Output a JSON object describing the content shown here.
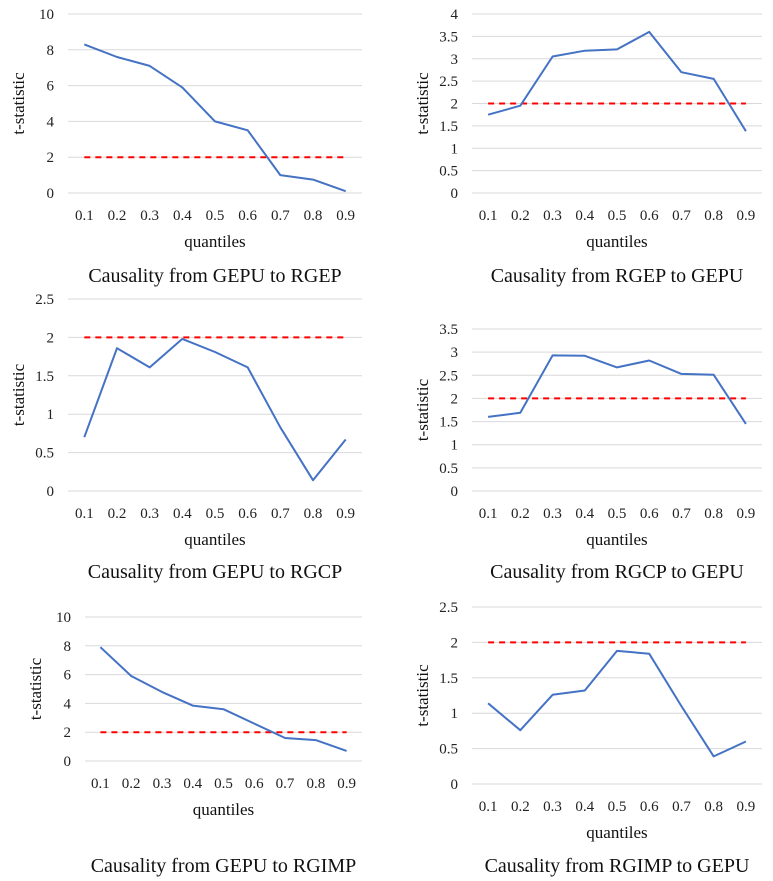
{
  "chart_data": [
    {
      "type": "line",
      "caption": "Causality from GEPU to RGEP",
      "xlabel": "quantiles",
      "ylabel": "t-statistic",
      "x": [
        "0.1",
        "0.2",
        "0.3",
        "0.4",
        "0.5",
        "0.6",
        "0.7",
        "0.8",
        "0.9"
      ],
      "y_ticks": [
        "0",
        "2",
        "4",
        "6",
        "8",
        "10"
      ],
      "ylim": [
        0,
        10
      ],
      "values": [
        8.3,
        7.6,
        7.1,
        5.9,
        4.0,
        3.5,
        1.0,
        0.75,
        0.1
      ],
      "threshold": 2,
      "grid": true,
      "colors": {
        "series": "#4472c4",
        "threshold": "#ff0000"
      }
    },
    {
      "type": "line",
      "caption": "Causality from RGEP to GEPU",
      "xlabel": "quantiles",
      "ylabel": "t-statistic",
      "x": [
        "0.1",
        "0.2",
        "0.3",
        "0.4",
        "0.5",
        "0.6",
        "0.7",
        "0.8",
        "0.9"
      ],
      "y_ticks": [
        "0",
        "0.5",
        "1",
        "1.5",
        "2",
        "2.5",
        "3",
        "3.5",
        "4"
      ],
      "ylim": [
        0,
        4
      ],
      "values": [
        1.75,
        1.95,
        3.05,
        3.18,
        3.21,
        3.6,
        2.7,
        2.55,
        1.38
      ],
      "threshold": 2,
      "grid": true,
      "colors": {
        "series": "#4472c4",
        "threshold": "#ff0000"
      }
    },
    {
      "type": "line",
      "caption": "Causality from GEPU to RGCP",
      "xlabel": "quantiles",
      "ylabel": "t-statistic",
      "x": [
        "0.1",
        "0.2",
        "0.3",
        "0.4",
        "0.5",
        "0.6",
        "0.7",
        "0.8",
        "0.9"
      ],
      "y_ticks": [
        "0",
        "0.5",
        "1",
        "1.5",
        "2",
        "2.5"
      ],
      "ylim": [
        0,
        2.5
      ],
      "values": [
        0.7,
        1.86,
        1.61,
        1.98,
        1.81,
        1.61,
        0.83,
        0.14,
        0.67
      ],
      "threshold": 2,
      "grid": true,
      "colors": {
        "series": "#4472c4",
        "threshold": "#ff0000"
      }
    },
    {
      "type": "line",
      "caption": "Causality from RGCP to GEPU",
      "xlabel": "quantiles",
      "ylabel": "t-statistic",
      "x": [
        "0.1",
        "0.2",
        "0.3",
        "0.4",
        "0.5",
        "0.6",
        "0.7",
        "0.8",
        "0.9"
      ],
      "y_ticks": [
        "0",
        "0.5",
        "1",
        "1.5",
        "2",
        "2.5",
        "3",
        "3.5"
      ],
      "ylim": [
        0,
        3.5
      ],
      "values": [
        1.6,
        1.69,
        2.93,
        2.92,
        2.67,
        2.82,
        2.53,
        2.51,
        1.45
      ],
      "threshold": 2,
      "grid": true,
      "colors": {
        "series": "#4472c4",
        "threshold": "#ff0000"
      }
    },
    {
      "type": "line",
      "caption": "Causality from GEPU to RGIMP",
      "xlabel": "quantiles",
      "ylabel": "t-statistic",
      "x": [
        "0.1",
        "0.2",
        "0.3",
        "0.4",
        "0.5",
        "0.6",
        "0.7",
        "0.8",
        "0.9"
      ],
      "y_ticks": [
        "0",
        "2",
        "4",
        "6",
        "8",
        "10"
      ],
      "ylim": [
        0,
        10
      ],
      "values": [
        7.9,
        5.9,
        4.8,
        3.85,
        3.6,
        2.6,
        1.6,
        1.45,
        0.7
      ],
      "threshold": 2,
      "grid": true,
      "colors": {
        "series": "#4472c4",
        "threshold": "#ff0000"
      }
    },
    {
      "type": "line",
      "caption": "Causality from RGIMP to GEPU",
      "xlabel": "quantiles",
      "ylabel": "t-statistic",
      "x": [
        "0.1",
        "0.2",
        "0.3",
        "0.4",
        "0.5",
        "0.6",
        "0.7",
        "0.8",
        "0.9"
      ],
      "y_ticks": [
        "0",
        "0.5",
        "1",
        "1.5",
        "2",
        "2.5"
      ],
      "ylim": [
        0,
        2.5
      ],
      "values": [
        1.14,
        0.76,
        1.26,
        1.32,
        1.88,
        1.84,
        1.1,
        0.39,
        0.6
      ],
      "threshold": 2,
      "grid": true,
      "colors": {
        "series": "#4472c4",
        "threshold": "#ff0000"
      }
    }
  ]
}
